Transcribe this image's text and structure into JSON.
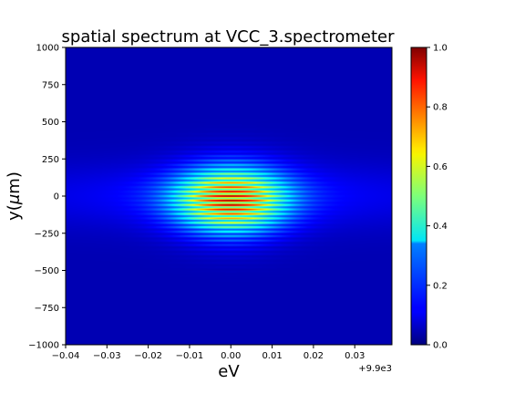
{
  "chart_data": {
    "type": "heatmap",
    "title": "spatial spectrum at VCC_3.spectrometer",
    "xlabel": "eV",
    "ylabel": "y(μm)",
    "x_offset_label": "+9.9e3",
    "xlim": [
      -0.04,
      0.039
    ],
    "ylim": [
      -1000,
      1000
    ],
    "x_ticks": [
      "−0.04",
      "−0.03",
      "−0.02",
      "−0.01",
      "0.00",
      "0.01",
      "0.02",
      "0.03"
    ],
    "x_tick_values": [
      -0.04,
      -0.03,
      -0.02,
      -0.01,
      0.0,
      0.01,
      0.02,
      0.03
    ],
    "y_ticks": [
      "1000",
      "750",
      "500",
      "250",
      "0",
      "−250",
      "−500",
      "−750",
      "−1000"
    ],
    "y_tick_values": [
      1000,
      750,
      500,
      250,
      0,
      -250,
      -500,
      -750,
      -1000
    ],
    "colormap": "jet",
    "colorbar": {
      "range": [
        0.0,
        1.0
      ],
      "ticks": [
        "1.0",
        "0.8",
        "0.6",
        "0.4",
        "0.2",
        "0.0"
      ],
      "tick_values": [
        1.0,
        0.8,
        0.6,
        0.4,
        0.2,
        0.0
      ]
    },
    "pattern": {
      "center_x": 0.0,
      "center_y": -30,
      "x_gaussian_sigma": 0.009,
      "y_gaussian_sigma": 150,
      "fringe_period_y": 30,
      "background_level": 0.05,
      "wide_band_level": 0.1,
      "wide_band_sigma_y": 150
    },
    "grid": false
  }
}
